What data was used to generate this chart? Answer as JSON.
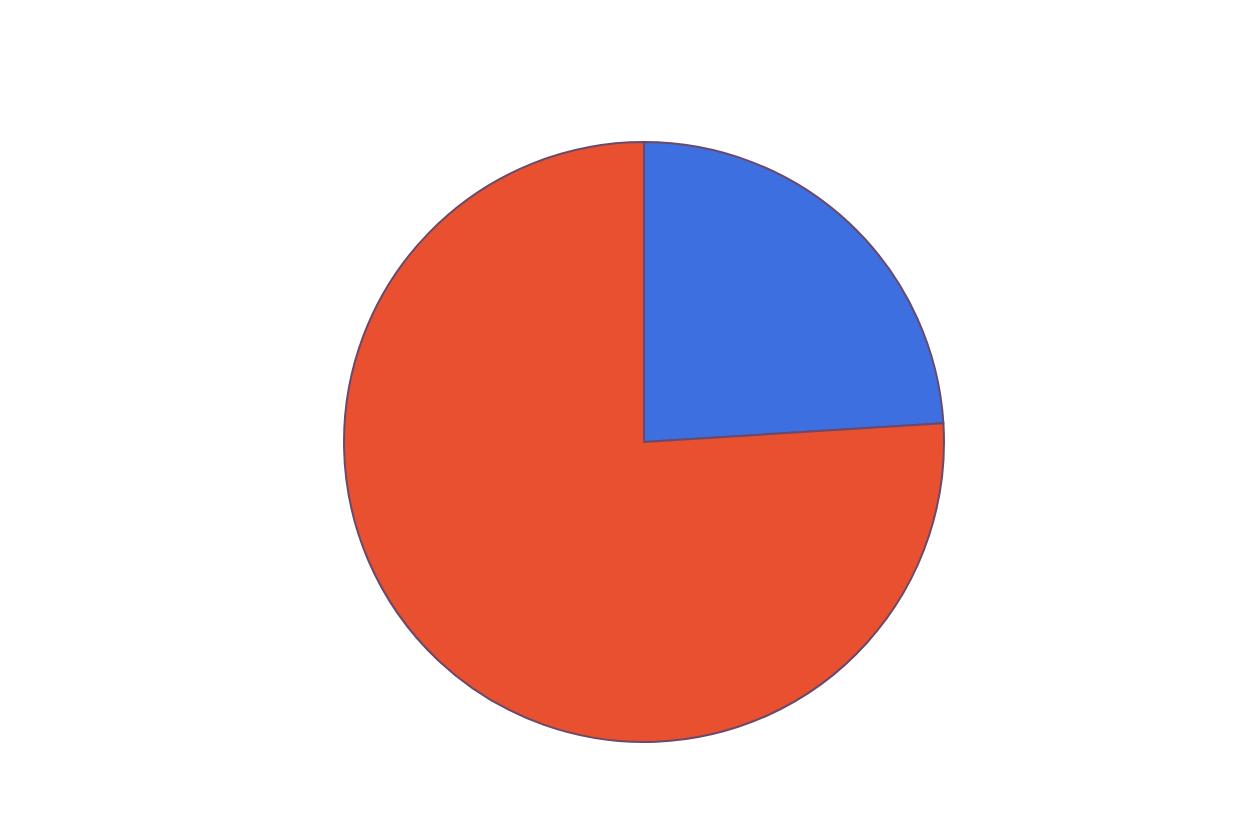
{
  "chart_data": {
    "type": "pie",
    "categories": [
      null,
      null
    ],
    "values": [
      24,
      76
    ],
    "colors": [
      "#3d6fe0",
      "#e8502f"
    ]
  }
}
